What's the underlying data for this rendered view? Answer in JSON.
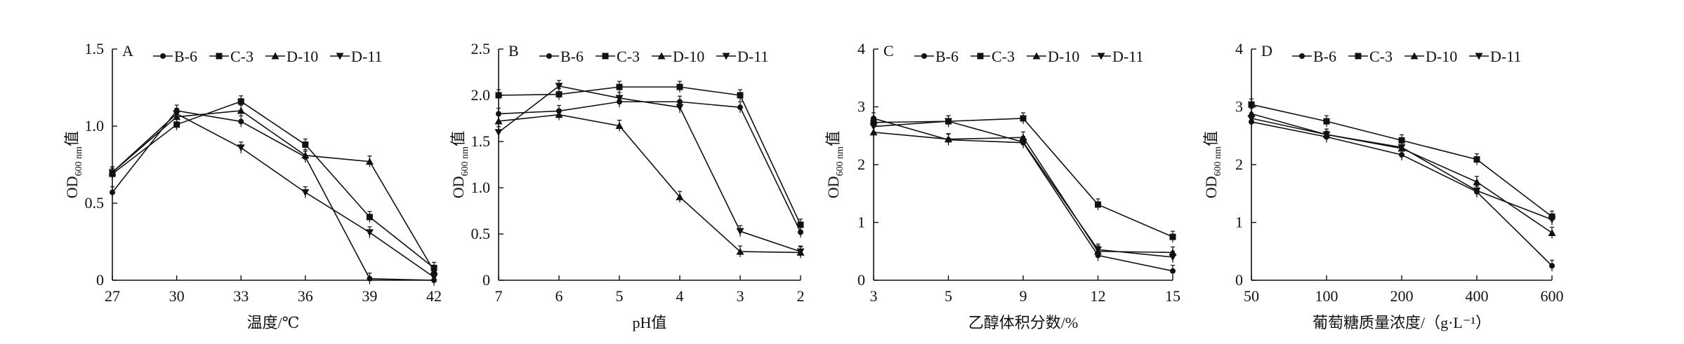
{
  "chart_data": [
    {
      "type": "line",
      "panel_letter": "A",
      "x": [
        "27",
        "30",
        "33",
        "36",
        "39",
        "42"
      ],
      "xlabel": "温度/℃",
      "ylabel_main": "OD",
      "ylabel_sub": "600 nm",
      "ylabel_suffix": "值",
      "ylim": [
        0,
        1.5
      ],
      "yticks": [
        "0",
        "0.5",
        "1.0",
        "1.5"
      ],
      "legend_position": "top",
      "series": [
        {
          "name": "B-6",
          "marker": "circle",
          "values": [
            0.57,
            1.1,
            1.03,
            0.8,
            0.01,
            0.0
          ]
        },
        {
          "name": "C-3",
          "marker": "square",
          "values": [
            0.69,
            1.01,
            1.16,
            0.88,
            0.41,
            0.08
          ]
        },
        {
          "name": "D-10",
          "marker": "triangle",
          "values": [
            0.7,
            1.06,
            1.1,
            0.81,
            0.77,
            0.06
          ]
        },
        {
          "name": "D-11",
          "marker": "triangle-down",
          "values": [
            0.7,
            1.08,
            0.86,
            0.57,
            0.31,
            0.02
          ]
        }
      ]
    },
    {
      "type": "line",
      "panel_letter": "B",
      "x": [
        "7",
        "6",
        "5",
        "4",
        "3",
        "2"
      ],
      "xlabel": "pH值",
      "ylabel_main": "OD",
      "ylabel_sub": "600 nm",
      "ylabel_suffix": "值",
      "ylim": [
        0,
        2.5
      ],
      "yticks": [
        "0",
        "0.5",
        "1.0",
        "1.5",
        "2.0",
        "2.5"
      ],
      "legend_position": "top",
      "series": [
        {
          "name": "B-6",
          "marker": "circle",
          "values": [
            1.8,
            1.83,
            1.93,
            1.93,
            1.87,
            0.52
          ]
        },
        {
          "name": "C-3",
          "marker": "square",
          "values": [
            2.0,
            2.01,
            2.09,
            2.09,
            2.0,
            0.6
          ]
        },
        {
          "name": "D-10",
          "marker": "triangle",
          "values": [
            1.72,
            1.79,
            1.67,
            0.9,
            0.31,
            0.3
          ]
        },
        {
          "name": "D-11",
          "marker": "triangle-down",
          "values": [
            1.6,
            2.1,
            1.97,
            1.87,
            0.53,
            0.31
          ]
        }
      ]
    },
    {
      "type": "line",
      "panel_letter": "C",
      "x": [
        "3",
        "5",
        "9",
        "12",
        "15"
      ],
      "xlabel": "乙醇体积分数/%",
      "ylabel_main": "OD",
      "ylabel_sub": "600 nm",
      "ylabel_suffix": "值",
      "ylim": [
        0,
        4
      ],
      "yticks": [
        "0",
        "1",
        "2",
        "3",
        "4"
      ],
      "legend_position": "top",
      "series": [
        {
          "name": "B-6",
          "marker": "circle",
          "values": [
            2.8,
            2.43,
            2.38,
            0.43,
            0.16
          ]
        },
        {
          "name": "C-3",
          "marker": "square",
          "values": [
            2.73,
            2.75,
            2.8,
            1.31,
            0.75
          ]
        },
        {
          "name": "D-10",
          "marker": "triangle",
          "values": [
            2.56,
            2.44,
            2.47,
            0.5,
            0.48
          ]
        },
        {
          "name": "D-11",
          "marker": "triangle-down",
          "values": [
            2.66,
            2.75,
            2.39,
            0.53,
            0.4
          ]
        }
      ]
    },
    {
      "type": "line",
      "panel_letter": "D",
      "x": [
        "50",
        "100",
        "200",
        "400",
        "600"
      ],
      "xlabel": "葡萄糖质量浓度/（g·L⁻¹）",
      "ylabel_main": "OD",
      "ylabel_sub": "600 nm",
      "ylabel_suffix": "值",
      "ylim": [
        0,
        4
      ],
      "yticks": [
        "0",
        "1",
        "2",
        "3",
        "4"
      ],
      "legend_position": "top",
      "series": [
        {
          "name": "B-6",
          "marker": "circle",
          "values": [
            2.74,
            2.48,
            2.17,
            1.53,
            0.25
          ]
        },
        {
          "name": "C-3",
          "marker": "square",
          "values": [
            3.04,
            2.75,
            2.42,
            2.09,
            1.1
          ]
        },
        {
          "name": "D-10",
          "marker": "triangle",
          "values": [
            2.88,
            2.52,
            2.28,
            1.7,
            0.82
          ]
        },
        {
          "name": "D-11",
          "marker": "triangle-down",
          "values": [
            2.8,
            2.52,
            2.3,
            1.55,
            1.05
          ]
        }
      ]
    }
  ]
}
